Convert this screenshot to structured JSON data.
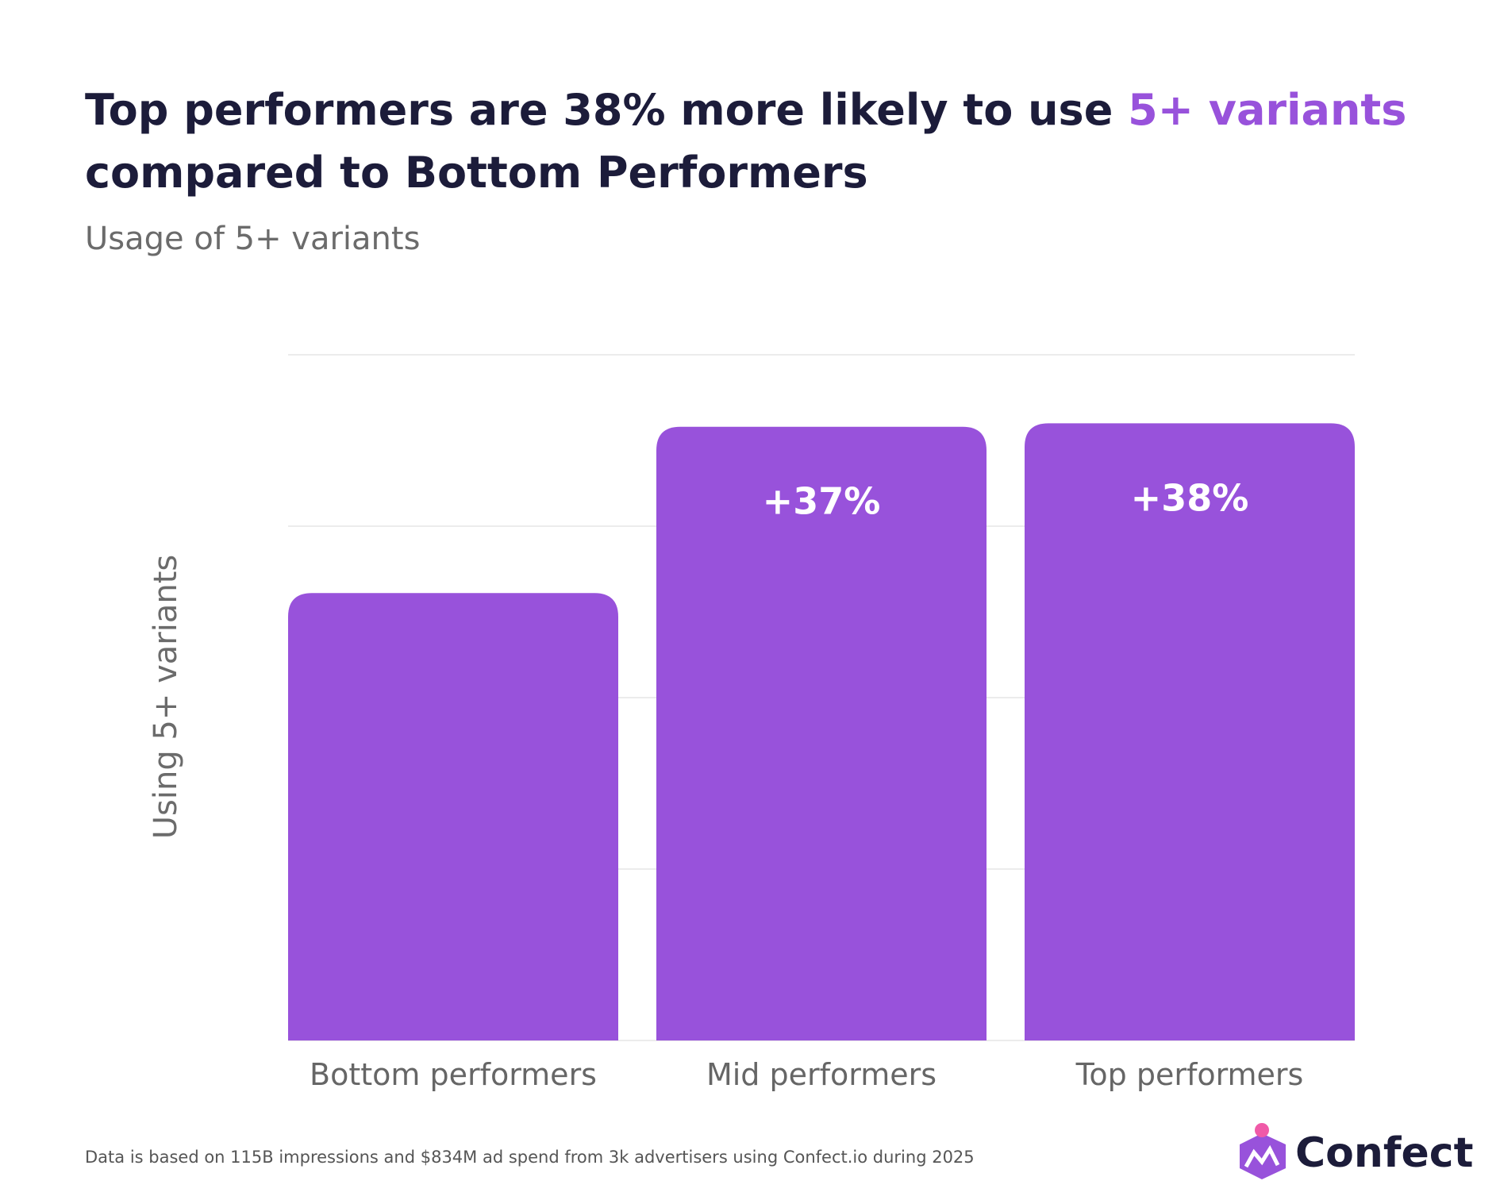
{
  "chart_data": {
    "type": "bar",
    "title": {
      "before": "Top performers are 38% more likely to use ",
      "highlight": "5+ variants",
      "after": "compared to Bottom Performers"
    },
    "subtitle": "Usage of 5+ variants",
    "y_label": "Using 5+ variants",
    "categories": [
      "Bottom performers",
      "Mid performers",
      "Top performers"
    ],
    "values": [
      2.61,
      3.58,
      3.6
    ],
    "annotations": [
      null,
      "+37%",
      "+38%"
    ],
    "color": "#9852db",
    "ylim": [
      0,
      4
    ],
    "yticks": [
      0,
      1,
      2,
      3,
      4
    ],
    "grid": true
  },
  "footnote": "Data is based on 115B impressions and $834M ad spend from 3k advertisers using Confect.io during 2025",
  "logo": "Confect"
}
